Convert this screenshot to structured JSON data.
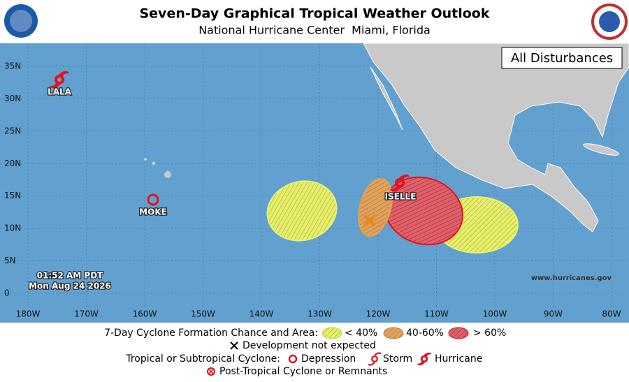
{
  "header": {
    "title": "Seven-Day Graphical Tropical Weather Outlook",
    "subtitle": "National Hurricane Center  Miami, Florida"
  },
  "map": {
    "panel_label": "All Disturbances",
    "lat_labels": [
      "35N",
      "30N",
      "25N",
      "20N",
      "15N",
      "10N",
      "5N",
      "0"
    ],
    "lon_labels": [
      "180W",
      "170W",
      "160W",
      "150W",
      "140W",
      "130W",
      "120W",
      "110W",
      "100W",
      "90W",
      "80W"
    ],
    "storms": [
      "LALA",
      "MOKE",
      "ISELLE"
    ],
    "timestamp": [
      "01:52 AM PDT",
      "Mon Aug 24 2026"
    ],
    "website": "www.hurricanes.gov"
  },
  "legend": {
    "formation_title": "7-Day Cyclone Formation Chance and Area:",
    "low": "< 40%",
    "medium": "40-60%",
    "high": "> 60%",
    "not_expected": "Development not expected",
    "cyclone_title": "Tropical or Subtropical Cyclone:",
    "depression": "Depression",
    "storm": "Storm",
    "hurricane": "Hurricane",
    "post_tropical": "Post-Tropical Cyclone or Remnants"
  }
}
